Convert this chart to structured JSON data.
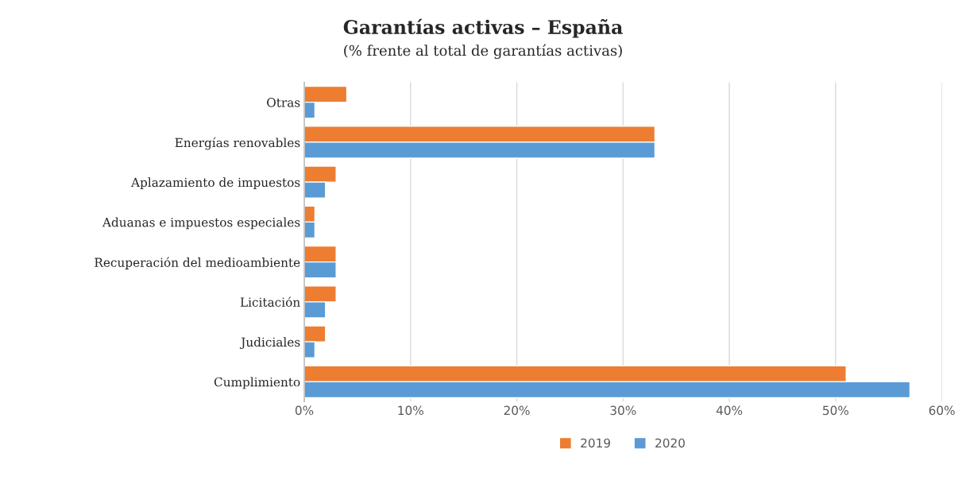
{
  "chart_data": {
    "type": "bar",
    "orientation": "horizontal",
    "title": "Garantías activas – España",
    "subtitle": "(% frente al total de garantías activas)",
    "categories": [
      "Otras",
      "Energías renovables",
      "Aplazamiento de impuestos",
      "Aduanas e impuestos especiales",
      "Recuperación del medioambiente",
      "Licitación",
      "Judiciales",
      "Cumplimiento"
    ],
    "series": [
      {
        "name": "2019",
        "color": "#ed7d31",
        "values": [
          4,
          33,
          3,
          1,
          3,
          3,
          2,
          51
        ]
      },
      {
        "name": "2020",
        "color": "#5b9bd5",
        "values": [
          1,
          33,
          2,
          1,
          3,
          2,
          1,
          57
        ]
      }
    ],
    "xlim": [
      0,
      60
    ],
    "xticks": [
      {
        "value": 0,
        "label": "0%"
      },
      {
        "value": 10,
        "label": "10%"
      },
      {
        "value": 20,
        "label": "20%"
      },
      {
        "value": 30,
        "label": "30%"
      },
      {
        "value": 40,
        "label": "40%"
      },
      {
        "value": 50,
        "label": "50%"
      },
      {
        "value": 60,
        "label": "60%"
      }
    ],
    "grid": "x",
    "legend": "bottom"
  }
}
